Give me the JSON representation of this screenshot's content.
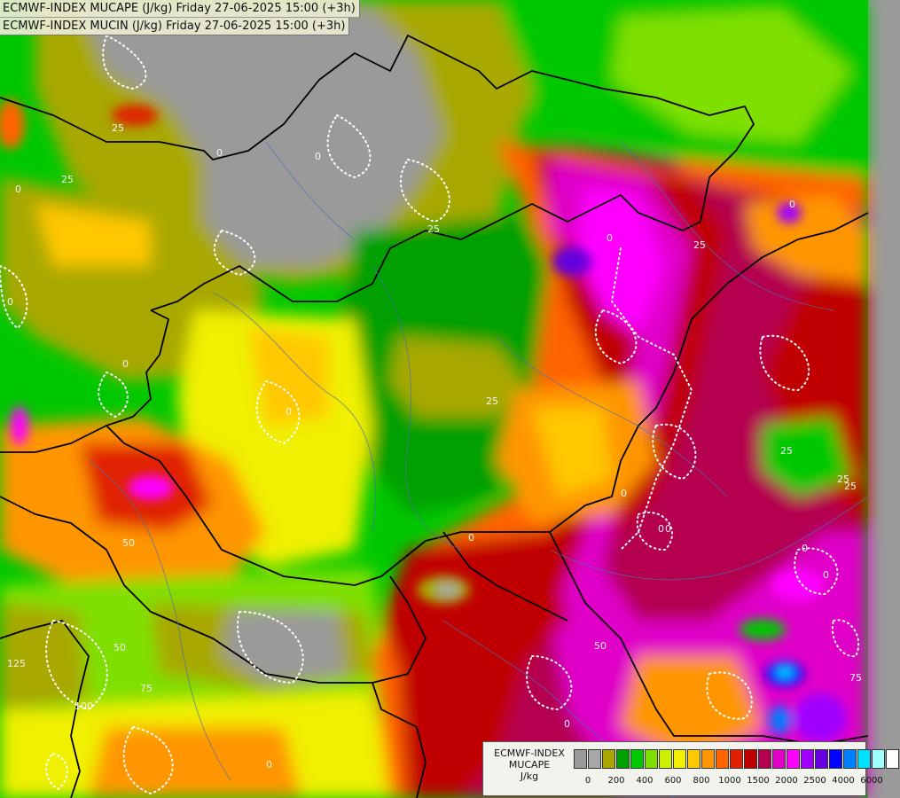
{
  "header": {
    "line1": "ECMWF-INDEX MUCAPE (J/kg) Friday 27-06-2025 15:00 (+3h)",
    "line2": "ECMWF-INDEX MUCIN (J/kg) Friday 27-06-2025 15:00 (+3h)"
  },
  "legend": {
    "title_line1": "ECMWF-INDEX",
    "title_line2": "MUCAPE",
    "unit": "J/kg",
    "colors": [
      "#9a9a9a",
      "#a8a8a8",
      "#a8a800",
      "#00a000",
      "#00c800",
      "#7fe000",
      "#c8f000",
      "#f0f000",
      "#ffc800",
      "#ff9600",
      "#ff6400",
      "#e02000",
      "#c00000",
      "#b40050",
      "#e000c8",
      "#ff00ff",
      "#a000ff",
      "#6400e0",
      "#0000ff",
      "#0080ff",
      "#00e0ff",
      "#a0ffff",
      "#ffffff"
    ],
    "ticks": [
      "0",
      "200",
      "400",
      "600",
      "800",
      "1000",
      "1500",
      "2000",
      "2500",
      "4000",
      "6000"
    ]
  },
  "map": {
    "cin_labels": [
      "0",
      "0",
      "25",
      "25",
      "0",
      "25",
      "25",
      "0",
      "25",
      "0",
      "0",
      "50",
      "0",
      "25",
      "0",
      "0",
      "0",
      "25",
      "50",
      "0",
      "75",
      "0",
      "0",
      "125",
      "75",
      "50",
      "100",
      "0",
      "25",
      "0",
      "0"
    ],
    "colors": {
      "gray": "#9a9a9a",
      "olive": "#a8a800",
      "dark_green": "#00a000",
      "green": "#00c800",
      "lime": "#7fe000",
      "yellow_green": "#c8f000",
      "yellow": "#f0f000",
      "light_orange": "#ffc800",
      "orange": "#ff9600",
      "dark_orange": "#ff6400",
      "red": "#e02000",
      "dark_red": "#c00000",
      "crimson": "#b40050",
      "magenta": "#e000c8",
      "pink": "#ff00ff",
      "purple": "#a000ff",
      "blue": "#0000ff",
      "cyan": "#00e0ff"
    }
  }
}
